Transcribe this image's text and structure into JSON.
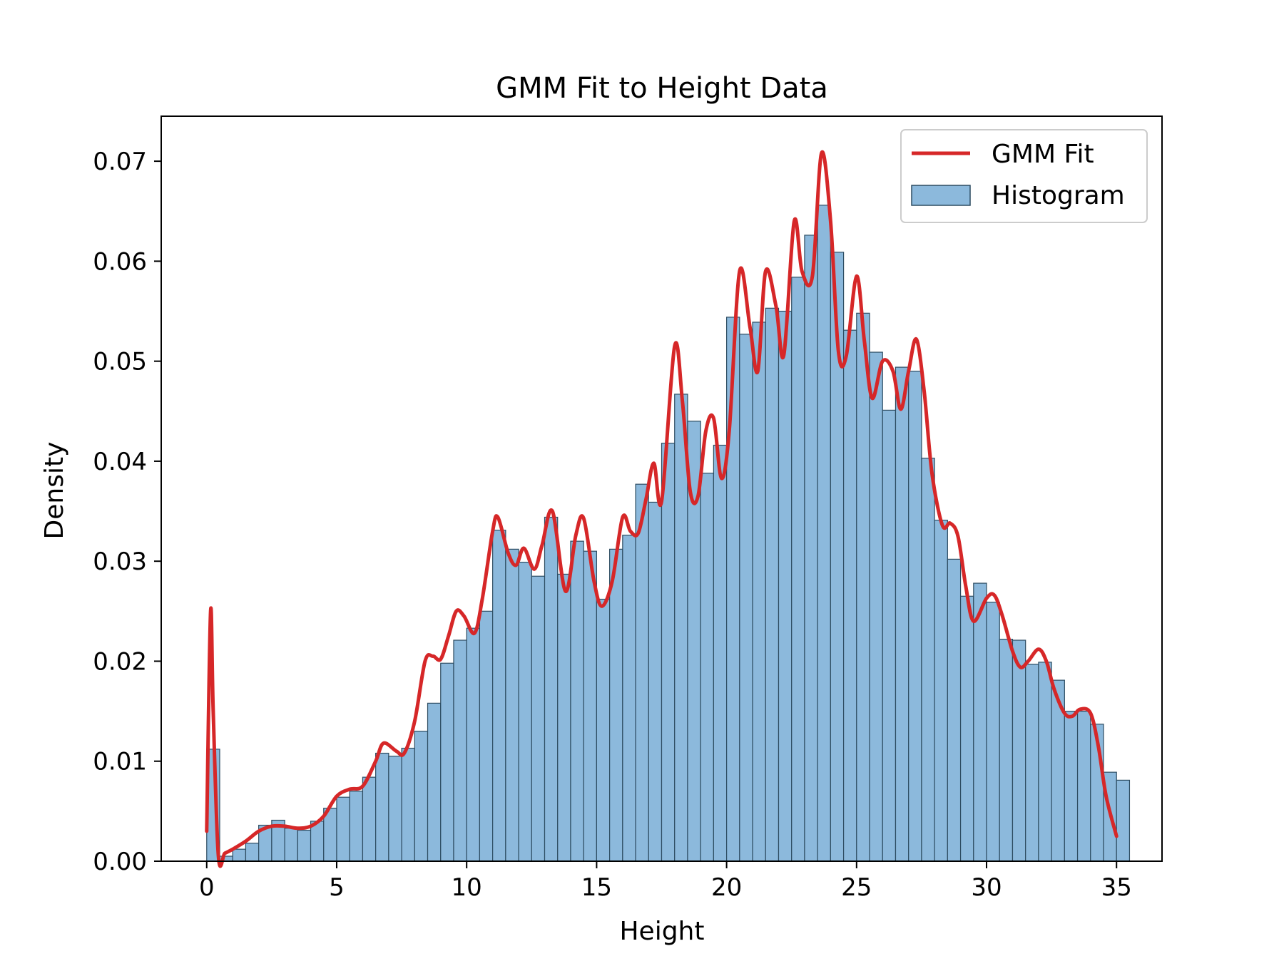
{
  "chart_data": {
    "type": "bar",
    "title": "GMM Fit to Height Data",
    "xlabel": "Height",
    "ylabel": "Density",
    "xlim": [
      -1.75,
      36.75
    ],
    "ylim": [
      0,
      0.0745
    ],
    "x_ticks": [
      0,
      5,
      10,
      15,
      20,
      25,
      30,
      35
    ],
    "x_tick_labels": [
      "0",
      "5",
      "10",
      "15",
      "20",
      "25",
      "30",
      "35"
    ],
    "y_ticks": [
      0,
      0.01,
      0.02,
      0.03,
      0.04,
      0.05,
      0.06,
      0.07
    ],
    "y_tick_labels": [
      "0.00",
      "0.01",
      "0.02",
      "0.03",
      "0.04",
      "0.05",
      "0.06",
      "0.07"
    ],
    "grid": false,
    "legend": {
      "placement": "top-right",
      "entries": [
        "GMM Fit",
        "Histogram"
      ]
    },
    "colors": {
      "histogram_fill": "#8cb9dc",
      "histogram_edge": "#2d4c61",
      "gmm_line": "#d62728"
    },
    "histogram": {
      "name": "Histogram",
      "bin_start": 0,
      "bin_width": 0.5,
      "values": [
        0.0112,
        0.0005,
        0.0012,
        0.0018,
        0.0036,
        0.0041,
        0.0033,
        0.0031,
        0.004,
        0.0053,
        0.0064,
        0.007,
        0.0084,
        0.0108,
        0.0105,
        0.0113,
        0.013,
        0.0158,
        0.0198,
        0.0221,
        0.0233,
        0.025,
        0.0331,
        0.0312,
        0.0299,
        0.0285,
        0.0344,
        0.0287,
        0.032,
        0.031,
        0.0262,
        0.0312,
        0.0326,
        0.0377,
        0.0359,
        0.0418,
        0.0467,
        0.044,
        0.0388,
        0.0416,
        0.0544,
        0.0527,
        0.0539,
        0.0553,
        0.055,
        0.0584,
        0.0626,
        0.0656,
        0.0609,
        0.0531,
        0.0548,
        0.0509,
        0.0451,
        0.0494,
        0.049,
        0.0403,
        0.0341,
        0.0302,
        0.0265,
        0.0278,
        0.0259,
        0.0222,
        0.0221,
        0.0197,
        0.0199,
        0.0181,
        0.015,
        0.015,
        0.0137,
        0.0089,
        0.0081
      ]
    },
    "gmm_fit": {
      "name": "GMM Fit",
      "x": [
        0.0,
        0.15,
        0.25,
        0.45,
        0.7,
        1.0,
        1.5,
        2.0,
        2.5,
        3.0,
        3.5,
        4.0,
        4.5,
        5.0,
        5.5,
        6.0,
        6.5,
        6.8,
        7.3,
        7.6,
        8.0,
        8.4,
        8.7,
        9.0,
        9.3,
        9.6,
        9.9,
        10.3,
        10.6,
        11.0,
        11.2,
        11.6,
        11.9,
        12.2,
        12.6,
        12.9,
        13.3,
        13.8,
        14.2,
        14.5,
        14.9,
        15.2,
        15.6,
        16.0,
        16.3,
        16.6,
        16.9,
        17.2,
        17.5,
        18.0,
        18.3,
        18.6,
        18.9,
        19.2,
        19.5,
        19.8,
        20.1,
        20.5,
        20.9,
        21.2,
        21.5,
        21.9,
        22.2,
        22.6,
        22.9,
        23.3,
        23.65,
        24.0,
        24.3,
        24.6,
        25.0,
        25.3,
        25.6,
        26.0,
        26.4,
        26.7,
        27.0,
        27.3,
        27.6,
        27.9,
        28.3,
        28.6,
        28.9,
        29.2,
        29.5,
        30.0,
        30.3,
        30.6,
        31.0,
        31.3,
        31.6,
        32.0,
        32.3,
        32.6,
        33.0,
        33.3,
        33.6,
        34.0,
        34.3,
        34.6,
        35.0
      ],
      "values": [
        0.003,
        0.025,
        0.015,
        0.0005,
        0.0008,
        0.0012,
        0.002,
        0.003,
        0.0035,
        0.0035,
        0.0033,
        0.0035,
        0.0045,
        0.0065,
        0.0072,
        0.0075,
        0.01,
        0.0118,
        0.011,
        0.0108,
        0.014,
        0.02,
        0.0205,
        0.0202,
        0.0225,
        0.025,
        0.0245,
        0.0228,
        0.0262,
        0.033,
        0.0344,
        0.0308,
        0.0296,
        0.0313,
        0.0292,
        0.0316,
        0.035,
        0.027,
        0.0326,
        0.0343,
        0.028,
        0.0255,
        0.028,
        0.0344,
        0.033,
        0.0328,
        0.0362,
        0.0398,
        0.036,
        0.0515,
        0.046,
        0.037,
        0.0365,
        0.043,
        0.0443,
        0.0383,
        0.043,
        0.059,
        0.0534,
        0.049,
        0.059,
        0.0555,
        0.0506,
        0.064,
        0.059,
        0.0585,
        0.0708,
        0.064,
        0.051,
        0.0505,
        0.0585,
        0.052,
        0.0463,
        0.05,
        0.049,
        0.0452,
        0.049,
        0.0522,
        0.047,
        0.0388,
        0.0336,
        0.0338,
        0.0325,
        0.0275,
        0.024,
        0.0263,
        0.0266,
        0.0246,
        0.021,
        0.0194,
        0.02,
        0.0212,
        0.02,
        0.0172,
        0.0148,
        0.0145,
        0.0152,
        0.0148,
        0.0115,
        0.0065,
        0.0025
      ]
    }
  }
}
